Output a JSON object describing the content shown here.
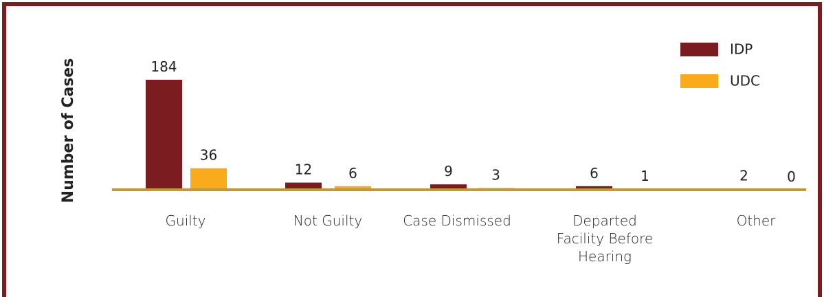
{
  "chart_data": {
    "type": "bar",
    "ylabel": "Number of Cases",
    "categories": [
      "Guilty",
      "Not Guilty",
      "Case Dismissed",
      "Departed Facility Before Hearing",
      "Other"
    ],
    "series": [
      {
        "name": "IDP",
        "color": "#7b1c20",
        "values": [
          184,
          12,
          9,
          6,
          2
        ]
      },
      {
        "name": "UDC",
        "color": "#f9ab1b",
        "values": [
          36,
          6,
          3,
          1,
          0
        ]
      }
    ],
    "legend": "upper right"
  }
}
